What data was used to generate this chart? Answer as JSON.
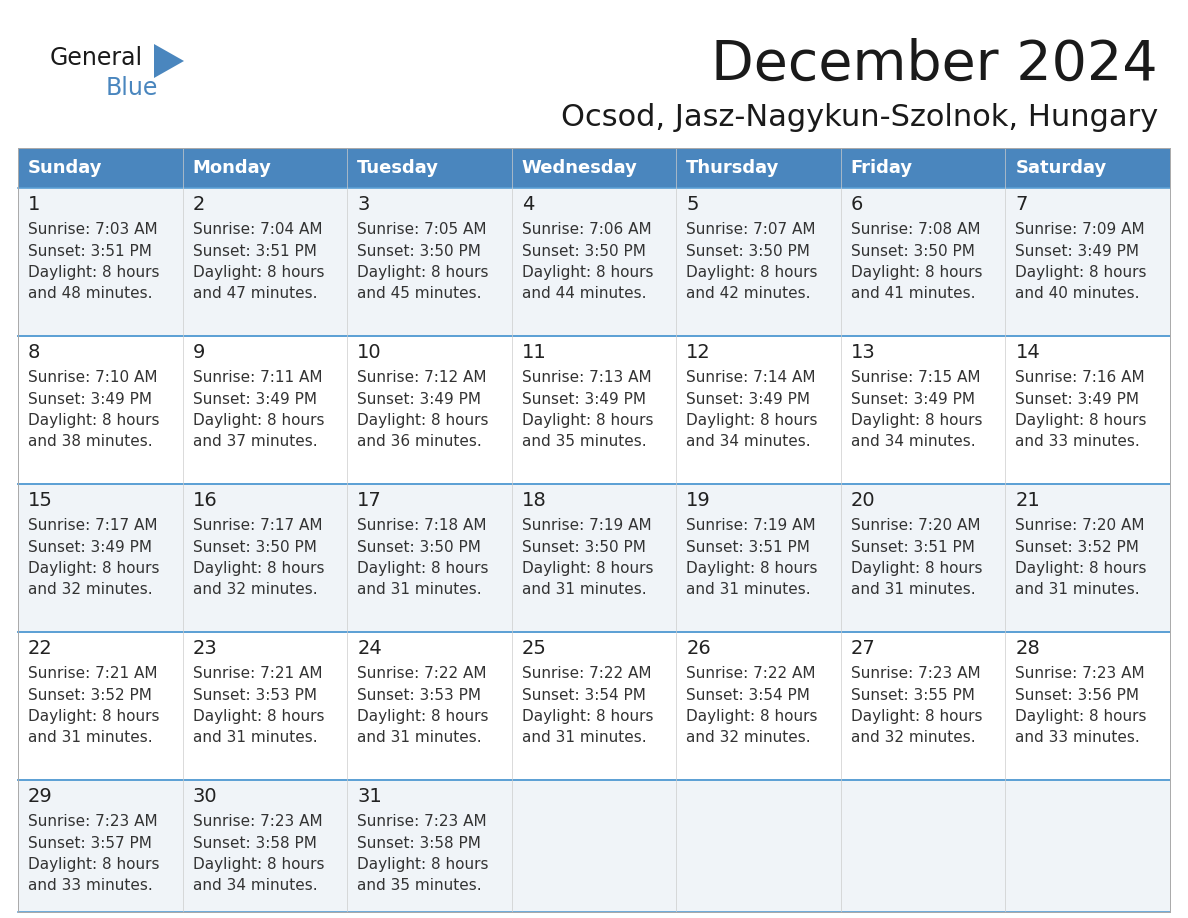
{
  "title": "December 2024",
  "subtitle": "Ocsod, Jasz-Nagykun-Szolnok, Hungary",
  "days_of_week": [
    "Sunday",
    "Monday",
    "Tuesday",
    "Wednesday",
    "Thursday",
    "Friday",
    "Saturday"
  ],
  "header_bg": "#4a86be",
  "header_text": "#ffffff",
  "row_bg_odd": "#f0f4f8",
  "row_bg_even": "#ffffff",
  "cell_border": "#5a9fd4",
  "day_num_color": "#222222",
  "info_text_color": "#333333",
  "title_color": "#1a1a1a",
  "subtitle_color": "#1a1a1a",
  "calendar_data": [
    [
      {
        "day": 1,
        "sunrise": "7:03 AM",
        "sunset": "3:51 PM",
        "daylight_min": "48"
      },
      {
        "day": 2,
        "sunrise": "7:04 AM",
        "sunset": "3:51 PM",
        "daylight_min": "47"
      },
      {
        "day": 3,
        "sunrise": "7:05 AM",
        "sunset": "3:50 PM",
        "daylight_min": "45"
      },
      {
        "day": 4,
        "sunrise": "7:06 AM",
        "sunset": "3:50 PM",
        "daylight_min": "44"
      },
      {
        "day": 5,
        "sunrise": "7:07 AM",
        "sunset": "3:50 PM",
        "daylight_min": "42"
      },
      {
        "day": 6,
        "sunrise": "7:08 AM",
        "sunset": "3:50 PM",
        "daylight_min": "41"
      },
      {
        "day": 7,
        "sunrise": "7:09 AM",
        "sunset": "3:49 PM",
        "daylight_min": "40"
      }
    ],
    [
      {
        "day": 8,
        "sunrise": "7:10 AM",
        "sunset": "3:49 PM",
        "daylight_min": "38"
      },
      {
        "day": 9,
        "sunrise": "7:11 AM",
        "sunset": "3:49 PM",
        "daylight_min": "37"
      },
      {
        "day": 10,
        "sunrise": "7:12 AM",
        "sunset": "3:49 PM",
        "daylight_min": "36"
      },
      {
        "day": 11,
        "sunrise": "7:13 AM",
        "sunset": "3:49 PM",
        "daylight_min": "35"
      },
      {
        "day": 12,
        "sunrise": "7:14 AM",
        "sunset": "3:49 PM",
        "daylight_min": "34"
      },
      {
        "day": 13,
        "sunrise": "7:15 AM",
        "sunset": "3:49 PM",
        "daylight_min": "34"
      },
      {
        "day": 14,
        "sunrise": "7:16 AM",
        "sunset": "3:49 PM",
        "daylight_min": "33"
      }
    ],
    [
      {
        "day": 15,
        "sunrise": "7:17 AM",
        "sunset": "3:49 PM",
        "daylight_min": "32"
      },
      {
        "day": 16,
        "sunrise": "7:17 AM",
        "sunset": "3:50 PM",
        "daylight_min": "32"
      },
      {
        "day": 17,
        "sunrise": "7:18 AM",
        "sunset": "3:50 PM",
        "daylight_min": "31"
      },
      {
        "day": 18,
        "sunrise": "7:19 AM",
        "sunset": "3:50 PM",
        "daylight_min": "31"
      },
      {
        "day": 19,
        "sunrise": "7:19 AM",
        "sunset": "3:51 PM",
        "daylight_min": "31"
      },
      {
        "day": 20,
        "sunrise": "7:20 AM",
        "sunset": "3:51 PM",
        "daylight_min": "31"
      },
      {
        "day": 21,
        "sunrise": "7:20 AM",
        "sunset": "3:52 PM",
        "daylight_min": "31"
      }
    ],
    [
      {
        "day": 22,
        "sunrise": "7:21 AM",
        "sunset": "3:52 PM",
        "daylight_min": "31"
      },
      {
        "day": 23,
        "sunrise": "7:21 AM",
        "sunset": "3:53 PM",
        "daylight_min": "31"
      },
      {
        "day": 24,
        "sunrise": "7:22 AM",
        "sunset": "3:53 PM",
        "daylight_min": "31"
      },
      {
        "day": 25,
        "sunrise": "7:22 AM",
        "sunset": "3:54 PM",
        "daylight_min": "31"
      },
      {
        "day": 26,
        "sunrise": "7:22 AM",
        "sunset": "3:54 PM",
        "daylight_min": "32"
      },
      {
        "day": 27,
        "sunrise": "7:23 AM",
        "sunset": "3:55 PM",
        "daylight_min": "32"
      },
      {
        "day": 28,
        "sunrise": "7:23 AM",
        "sunset": "3:56 PM",
        "daylight_min": "33"
      }
    ],
    [
      {
        "day": 29,
        "sunrise": "7:23 AM",
        "sunset": "3:57 PM",
        "daylight_min": "33"
      },
      {
        "day": 30,
        "sunrise": "7:23 AM",
        "sunset": "3:58 PM",
        "daylight_min": "34"
      },
      {
        "day": 31,
        "sunrise": "7:23 AM",
        "sunset": "3:58 PM",
        "daylight_min": "35"
      },
      null,
      null,
      null,
      null
    ]
  ],
  "logo_text1": "General",
  "logo_text2": "Blue",
  "logo_color1": "#1a1a1a",
  "logo_color2": "#4a86be",
  "logo_triangle_color": "#4a86be"
}
